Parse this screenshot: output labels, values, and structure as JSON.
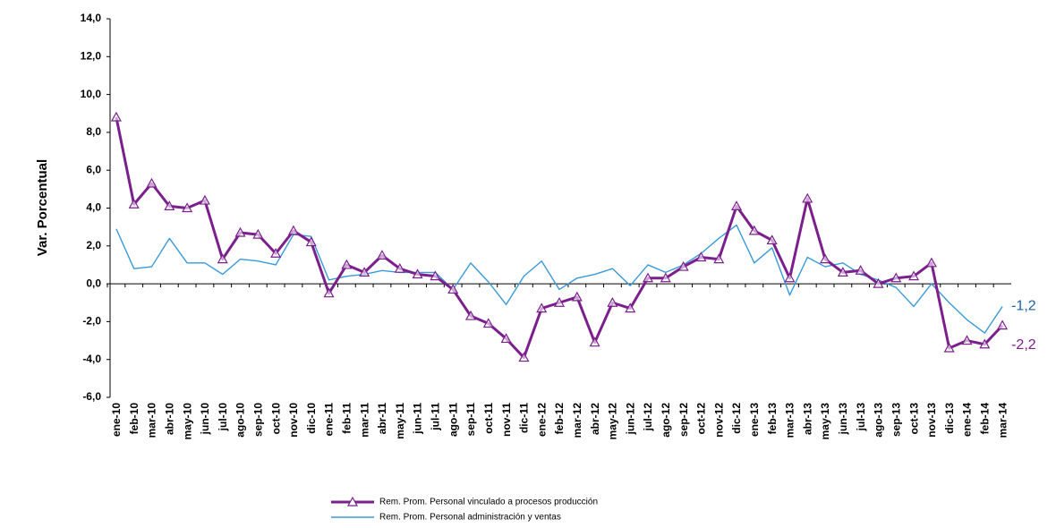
{
  "chart_data": {
    "type": "line",
    "y_label": "Var. Porcentual",
    "categories": [
      "ene-10",
      "feb-10",
      "mar-10",
      "abr-10",
      "may-10",
      "jun-10",
      "jul-10",
      "ago-10",
      "sep-10",
      "oct-10",
      "nov-10",
      "dic-10",
      "ene-11",
      "feb-11",
      "mar-11",
      "abr-11",
      "may-11",
      "jun-11",
      "jul-11",
      "ago-11",
      "sep-11",
      "oct-11",
      "nov-11",
      "dic-11",
      "ene-12",
      "feb-12",
      "mar-12",
      "abr-12",
      "may-12",
      "jun-12",
      "jul-12",
      "ago-12",
      "sep-12",
      "oct-12",
      "nov-12",
      "dic-12",
      "ene-13",
      "feb-13",
      "mar-13",
      "abr-13",
      "may-13",
      "jun-13",
      "jul-13",
      "ago-13",
      "sep-13",
      "oct-13",
      "nov-13",
      "dic-13",
      "ene-14",
      "feb-14",
      "mar-14"
    ],
    "series": [
      {
        "name": "Rem. Prom. Personal vinculado a procesos producción",
        "color": "#7b1f8c",
        "marker": "triangle",
        "values": [
          8.8,
          4.2,
          5.3,
          4.1,
          4.0,
          4.4,
          1.3,
          2.7,
          2.6,
          1.6,
          2.8,
          2.2,
          -0.5,
          1.0,
          0.6,
          1.5,
          0.8,
          0.5,
          0.4,
          -0.3,
          -1.7,
          -2.1,
          -2.9,
          -3.9,
          -1.3,
          -1.0,
          -0.7,
          -3.1,
          -1.0,
          -1.3,
          0.3,
          0.3,
          0.9,
          1.4,
          1.3,
          4.1,
          2.8,
          2.3,
          0.3,
          4.5,
          1.3,
          0.6,
          0.7,
          0.0,
          0.3,
          0.4,
          1.1,
          -3.4,
          -3.0,
          -3.2,
          -2.2
        ],
        "value_labels": [
          null,
          null,
          null,
          null,
          null,
          null,
          null,
          null,
          null,
          null,
          null,
          null,
          null,
          null,
          null,
          null,
          null,
          null,
          null,
          null,
          null,
          null,
          null,
          null,
          null,
          null,
          null,
          null,
          null,
          null,
          null,
          null,
          null,
          null,
          null,
          null,
          null,
          null,
          null,
          null,
          null,
          null,
          null,
          null,
          null,
          null,
          null,
          null,
          null,
          null,
          "-2,2"
        ]
      },
      {
        "name": "Rem. Prom. Personal administración y ventas",
        "color": "#3a9ad9",
        "values": [
          2.9,
          0.8,
          0.9,
          2.4,
          1.1,
          1.1,
          0.5,
          1.3,
          1.2,
          1.0,
          2.6,
          2.5,
          0.2,
          0.4,
          0.5,
          0.7,
          0.6,
          0.6,
          0.6,
          -0.3,
          1.1,
          0.1,
          -1.1,
          0.4,
          1.2,
          -0.3,
          0.3,
          0.5,
          0.8,
          -0.1,
          1.0,
          0.6,
          1.0,
          1.6,
          2.4,
          3.1,
          1.1,
          1.9,
          -0.6,
          1.4,
          0.9,
          1.1,
          0.5,
          0.2,
          -0.2,
          -1.2,
          0.0,
          -1.0,
          -1.9,
          -2.6,
          -1.2
        ],
        "value_labels": [
          null,
          null,
          null,
          null,
          null,
          null,
          null,
          null,
          null,
          null,
          null,
          null,
          null,
          null,
          null,
          null,
          null,
          null,
          null,
          null,
          null,
          null,
          null,
          null,
          null,
          null,
          null,
          null,
          null,
          null,
          null,
          null,
          null,
          null,
          null,
          null,
          null,
          null,
          null,
          null,
          null,
          null,
          null,
          null,
          null,
          null,
          null,
          null,
          null,
          null,
          "-1,2"
        ]
      }
    ],
    "ylim": [
      -6,
      14
    ],
    "yticks": [
      {
        "value": -6,
        "label": "-6,0"
      },
      {
        "value": -4,
        "label": "-4,0"
      },
      {
        "value": -2,
        "label": "-2,0"
      },
      {
        "value": 0,
        "label": "0,0"
      },
      {
        "value": 2,
        "label": "2,0"
      },
      {
        "value": 4,
        "label": "4,0"
      },
      {
        "value": 6,
        "label": "6,0"
      },
      {
        "value": 8,
        "label": "8,0"
      },
      {
        "value": 10,
        "label": "10,0"
      },
      {
        "value": 12,
        "label": "12,0"
      },
      {
        "value": 14,
        "label": "14,0"
      }
    ],
    "grid": false
  }
}
